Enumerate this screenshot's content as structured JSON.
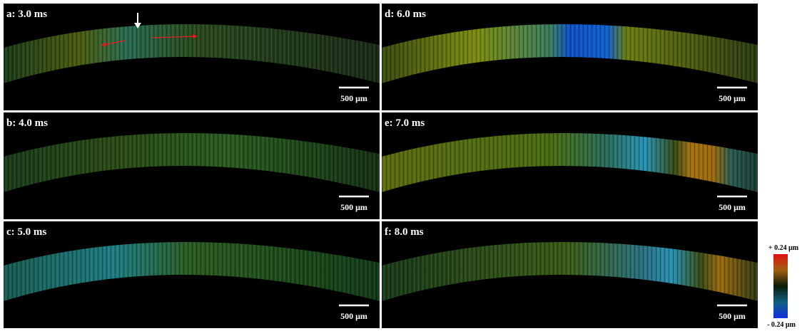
{
  "panels": [
    {
      "label": "a: 3.0 ms",
      "scale_bar": "500 μm"
    },
    {
      "label": "d: 6.0 ms",
      "scale_bar": "500 μm"
    },
    {
      "label": "b: 4.0 ms",
      "scale_bar": "500 μm"
    },
    {
      "label": "e: 7.0 ms",
      "scale_bar": "500 μm"
    },
    {
      "label": "c: 5.0 ms",
      "scale_bar": "500 μm"
    },
    {
      "label": "f: 8.0 ms",
      "scale_bar": "500 μm"
    }
  ],
  "colorbar": {
    "max_label": "+ 0.24 μm",
    "min_label": "- 0.24 μm"
  }
}
